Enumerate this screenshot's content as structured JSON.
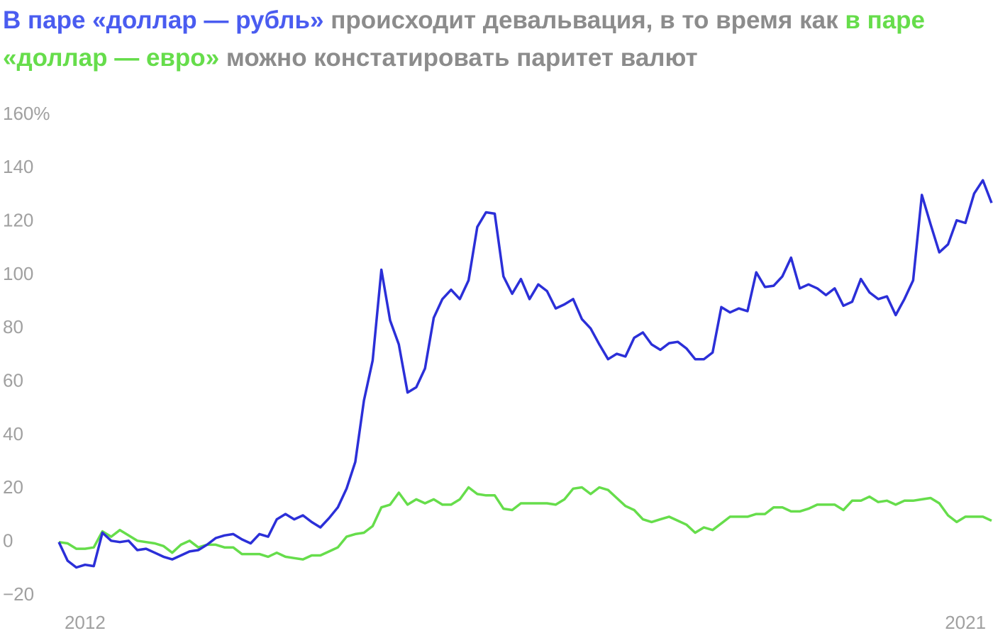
{
  "chart_data": {
    "type": "line",
    "title_parts": [
      {
        "text": "В паре «доллар — рубль»",
        "color": "#4a5cf0"
      },
      {
        "text": "происходит девальвация, в то время как",
        "color": "#8c8c8c"
      },
      {
        "text": "в паре «доллар — евро»",
        "color": "#66dd4b"
      },
      {
        "text": "можно констатировать паритет валют",
        "color": "#8c8c8c"
      }
    ],
    "categories": [
      null,
      null,
      null,
      "2012",
      null,
      null,
      null,
      null,
      null,
      null,
      null,
      null,
      null,
      null,
      null,
      null,
      null,
      null,
      null,
      null,
      null,
      null,
      null,
      null,
      null,
      null,
      null,
      null,
      null,
      null,
      null,
      null,
      null,
      null,
      null,
      null,
      null,
      null,
      null,
      null,
      null,
      null,
      null,
      null,
      null,
      null,
      null,
      null,
      null,
      null,
      null,
      null,
      null,
      null,
      null,
      null,
      null,
      null,
      null,
      null,
      null,
      null,
      null,
      null,
      null,
      null,
      null,
      null,
      null,
      null,
      null,
      null,
      null,
      null,
      null,
      null,
      null,
      null,
      null,
      null,
      null,
      null,
      null,
      null,
      null,
      null,
      null,
      null,
      null,
      null,
      null,
      null,
      null,
      null,
      null,
      null,
      null,
      null,
      null,
      null,
      null,
      null,
      null,
      null,
      "2021",
      null,
      null,
      null
    ],
    "series": [
      {
        "color": "#2b2fd8",
        "values": [
          0,
          -7,
          -9.5,
          -8.5,
          -9,
          3.5,
          0.5,
          0,
          0.5,
          -3,
          -2.5,
          -4,
          -5.5,
          -6.5,
          -5,
          -3.5,
          -3,
          -1,
          1.5,
          2.5,
          3,
          1,
          -0.5,
          3,
          2,
          8.5,
          10.5,
          8.5,
          10,
          7.5,
          5.5,
          9,
          13,
          20,
          30,
          53,
          68,
          102,
          83,
          74,
          56,
          58,
          65,
          84,
          91,
          94.5,
          91,
          98,
          118,
          123.5,
          123,
          99.5,
          93,
          98.5,
          91,
          96.5,
          94,
          87.5,
          89,
          91,
          83.5,
          80,
          74,
          68.5,
          70.5,
          69.5,
          76.5,
          78.5,
          74,
          72,
          74.5,
          75,
          72.5,
          68.5,
          68.5,
          71,
          88,
          86,
          87.5,
          86.5,
          101,
          95.5,
          96,
          99.5,
          106.5,
          95,
          96.5,
          95,
          92.5,
          95,
          88.5,
          90,
          98.5,
          93.5,
          91,
          92,
          85,
          91,
          98,
          130,
          119,
          108.5,
          111.5,
          120.5,
          119.5,
          130.5,
          135.5,
          127
        ]
      },
      {
        "color": "#66dd4b",
        "values": [
          0,
          -0.5,
          -2.5,
          -2.5,
          -2,
          4,
          2,
          4.5,
          2.5,
          0.5,
          0,
          -0.5,
          -1.5,
          -4,
          -1,
          0.5,
          -2,
          -1,
          -1,
          -2,
          -2,
          -4.5,
          -4.5,
          -4.5,
          -5.5,
          -4,
          -5.5,
          -6,
          -6.5,
          -5,
          -5,
          -3.5,
          -2,
          2,
          3,
          3.5,
          6,
          13,
          14,
          18.5,
          14,
          16,
          14.5,
          16,
          14,
          14,
          16,
          20.5,
          18,
          17.5,
          17.5,
          12.5,
          12,
          14.5,
          14.5,
          14.5,
          14.5,
          14,
          16,
          20,
          20.5,
          18,
          20.5,
          19.5,
          16.5,
          13.5,
          12,
          8.5,
          7.5,
          8.5,
          9.5,
          8,
          6.5,
          3.5,
          5.5,
          4.5,
          7,
          9.5,
          9.5,
          9.5,
          10.5,
          10.5,
          13,
          13,
          11.5,
          11.5,
          12.5,
          14,
          14,
          14,
          12,
          15.5,
          15.5,
          17,
          15,
          15.5,
          14,
          15.5,
          15.5,
          16,
          16.5,
          14.5,
          10,
          7.5,
          9.5,
          9.5,
          9.5,
          8
        ]
      }
    ],
    "ylim": [
      -20,
      160
    ],
    "yticks": [
      {
        "value": -20,
        "label": "−20"
      },
      0,
      20,
      40,
      60,
      80,
      100,
      120,
      140,
      {
        "value": 160,
        "label": "160%"
      }
    ],
    "grid": false
  }
}
